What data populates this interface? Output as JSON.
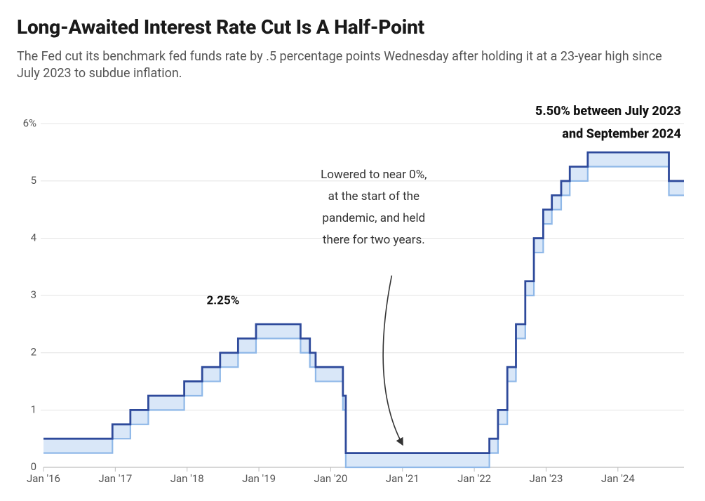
{
  "title": "Long-Awaited Interest Rate Cut Is A Half-Point",
  "subtitle": "The Fed cut its benchmark fed funds rate by .5 percentage points Wednesday after holding it at a 23-year high since July 2023 to subdue inflation.",
  "chart": {
    "type": "step-line-band",
    "background_color": "#ffffff",
    "grid_color": "#e4e4e4",
    "axis_color": "#bfbfbf",
    "tick_color": "#bfbfbf",
    "upper_line_color": "#2e4a9b",
    "lower_line_color": "#8fb8e8",
    "band_fill_color": "#b9d3f3",
    "band_fill_opacity": 0.55,
    "line_width_upper": 2.8,
    "line_width_lower": 2.2,
    "font_family": "Segoe UI, Roboto, Helvetica Neue, Arial, sans-serif",
    "tick_font_size": 15,
    "tick_font_color": "#555555",
    "y": {
      "min": 0,
      "max": 6.2,
      "ticks": [
        0,
        1,
        2,
        3,
        4,
        5,
        6
      ],
      "tick_labels": [
        "0",
        "1",
        "2",
        "3",
        "4",
        "5",
        "6%"
      ],
      "gridlines_at": [
        1,
        2,
        3,
        4,
        5,
        6
      ]
    },
    "x": {
      "min": 2016.0,
      "max": 2024.92,
      "ticks": [
        2016,
        2017,
        2018,
        2019,
        2020,
        2021,
        2022,
        2023,
        2024
      ],
      "tick_labels": [
        "Jan '16",
        "Jan '17",
        "Jan '18",
        "Jan '19",
        "Jan '20",
        "Jan '21",
        "Jan '22",
        "Jan '23",
        "Jan '24"
      ]
    },
    "upper_series": [
      {
        "t": 2016.0,
        "v": 0.5
      },
      {
        "t": 2016.96,
        "v": 0.75
      },
      {
        "t": 2017.21,
        "v": 1.0
      },
      {
        "t": 2017.46,
        "v": 1.25
      },
      {
        "t": 2017.96,
        "v": 1.5
      },
      {
        "t": 2018.21,
        "v": 1.75
      },
      {
        "t": 2018.46,
        "v": 2.0
      },
      {
        "t": 2018.71,
        "v": 2.25
      },
      {
        "t": 2018.96,
        "v": 2.5
      },
      {
        "t": 2019.58,
        "v": 2.25
      },
      {
        "t": 2019.71,
        "v": 2.0
      },
      {
        "t": 2019.79,
        "v": 1.75
      },
      {
        "t": 2020.17,
        "v": 1.25
      },
      {
        "t": 2020.21,
        "v": 0.25
      },
      {
        "t": 2022.21,
        "v": 0.5
      },
      {
        "t": 2022.33,
        "v": 1.0
      },
      {
        "t": 2022.46,
        "v": 1.75
      },
      {
        "t": 2022.58,
        "v": 2.5
      },
      {
        "t": 2022.71,
        "v": 3.25
      },
      {
        "t": 2022.83,
        "v": 4.0
      },
      {
        "t": 2022.96,
        "v": 4.5
      },
      {
        "t": 2023.08,
        "v": 4.75
      },
      {
        "t": 2023.21,
        "v": 5.0
      },
      {
        "t": 2023.33,
        "v": 5.25
      },
      {
        "t": 2023.58,
        "v": 5.5
      },
      {
        "t": 2024.71,
        "v": 5.0
      },
      {
        "t": 2024.92,
        "v": 5.0
      }
    ],
    "lower_series": [
      {
        "t": 2016.0,
        "v": 0.25
      },
      {
        "t": 2016.96,
        "v": 0.5
      },
      {
        "t": 2017.21,
        "v": 0.75
      },
      {
        "t": 2017.46,
        "v": 1.0
      },
      {
        "t": 2017.96,
        "v": 1.25
      },
      {
        "t": 2018.21,
        "v": 1.5
      },
      {
        "t": 2018.46,
        "v": 1.75
      },
      {
        "t": 2018.71,
        "v": 2.0
      },
      {
        "t": 2018.96,
        "v": 2.25
      },
      {
        "t": 2019.58,
        "v": 2.0
      },
      {
        "t": 2019.71,
        "v": 1.75
      },
      {
        "t": 2019.79,
        "v": 1.5
      },
      {
        "t": 2020.17,
        "v": 1.0
      },
      {
        "t": 2020.21,
        "v": 0.0
      },
      {
        "t": 2022.21,
        "v": 0.25
      },
      {
        "t": 2022.33,
        "v": 0.75
      },
      {
        "t": 2022.46,
        "v": 1.5
      },
      {
        "t": 2022.58,
        "v": 2.25
      },
      {
        "t": 2022.71,
        "v": 3.0
      },
      {
        "t": 2022.83,
        "v": 3.75
      },
      {
        "t": 2022.96,
        "v": 4.25
      },
      {
        "t": 2023.08,
        "v": 4.5
      },
      {
        "t": 2023.21,
        "v": 4.75
      },
      {
        "t": 2023.33,
        "v": 5.0
      },
      {
        "t": 2023.58,
        "v": 5.25
      },
      {
        "t": 2024.71,
        "v": 4.75
      },
      {
        "t": 2024.92,
        "v": 4.75
      }
    ],
    "annotations": {
      "left_peak": {
        "text": "2.25%",
        "bold": true,
        "font_size": 17,
        "color": "#111111",
        "anchor_t": 2018.5,
        "anchor_v": 2.85,
        "align": "middle"
      },
      "pandemic": {
        "lines": [
          "Lowered to near 0%,",
          "at the start of the",
          "pandemic, and held",
          "there for two years."
        ],
        "font_size": 17,
        "color": "#333333",
        "text_t": 2020.6,
        "text_v_top": 5.05,
        "line_height_v": 0.38,
        "align": "middle",
        "arrow": {
          "color": "#333333",
          "width": 1.6,
          "from": {
            "t": 2020.85,
            "v": 3.35
          },
          "ctrl": {
            "t": 2020.55,
            "v": 1.45
          },
          "to": {
            "t": 2021.0,
            "v": 0.4
          }
        }
      },
      "right_peak": {
        "lines": [
          "5.50% between July 2023",
          "and September 2024"
        ],
        "font_size": 18,
        "bold": true,
        "color": "#111111",
        "text_t": 2024.88,
        "text_v_top": 6.15,
        "line_height_v": 0.4,
        "align": "end"
      }
    }
  }
}
